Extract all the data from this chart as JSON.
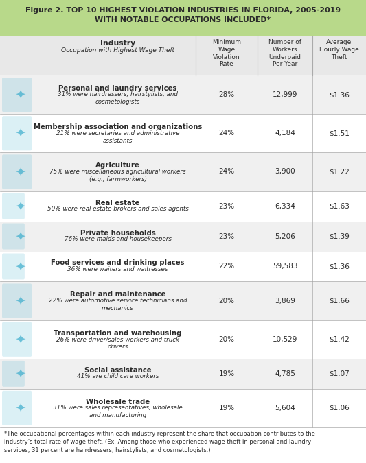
{
  "title_line1": "Figure 2. TOP 10 HIGHEST VIOLATION INDUSTRIES IN FLORIDA, 2005-2019",
  "title_line2": "WITH NOTABLE OCCUPATIONS INCLUDED*",
  "title_bg": "#b8d98a",
  "header_bg": "#e8e8e8",
  "row_bg_odd": "#f0f0f0",
  "row_bg_even": "#ffffff",
  "industries": [
    {
      "name": "Personal and laundry services",
      "sub": "31% were hairdressers, hairstylists, and\ncosmetologists",
      "rate": "28%",
      "workers": "12,999",
      "wage": "$1.36",
      "sub_lines": 2
    },
    {
      "name": "Membership association and organizations",
      "sub": "21% were secretaries and administrative\nassistants",
      "rate": "24%",
      "workers": "4,184",
      "wage": "$1.51",
      "sub_lines": 2
    },
    {
      "name": "Agriculture",
      "sub": "75% were miscellaneous agricultural workers\n(e.g., farmworkers)",
      "rate": "24%",
      "workers": "3,900",
      "wage": "$1.22",
      "sub_lines": 2
    },
    {
      "name": "Real estate",
      "sub": "50% were real estate brokers and sales agents",
      "rate": "23%",
      "workers": "6,334",
      "wage": "$1.63",
      "sub_lines": 1
    },
    {
      "name": "Private households",
      "sub": "76% were maids and housekeepers",
      "rate": "23%",
      "workers": "5,206",
      "wage": "$1.39",
      "sub_lines": 1
    },
    {
      "name": "Food services and drinking places",
      "sub": "36% were waiters and waitresses",
      "rate": "22%",
      "workers": "59,583",
      "wage": "$1.36",
      "sub_lines": 1
    },
    {
      "name": "Repair and maintenance",
      "sub": "22% were automotive service technicians and\nmechanics",
      "rate": "20%",
      "workers": "3,869",
      "wage": "$1.66",
      "sub_lines": 2
    },
    {
      "name": "Transportation and warehousing",
      "sub": "26% were driver/sales workers and truck\ndrivers",
      "rate": "20%",
      "workers": "10,529",
      "wage": "$1.42",
      "sub_lines": 2
    },
    {
      "name": "Social assistance",
      "sub": "41% are child care workers",
      "rate": "19%",
      "workers": "4,785",
      "wage": "$1.07",
      "sub_lines": 1
    },
    {
      "name": "Wholesale trade",
      "sub": "31% were sales representatives, wholesale\nand manufacturing",
      "rate": "19%",
      "workers": "5,604",
      "wage": "$1.06",
      "sub_lines": 2
    }
  ],
  "footnote": "*The occupational percentages within each industry represent the share that occupation contributes to the industry’s total rate of wage theft. (Ex. Among those who experienced wage theft in personal and laundry services, 31 percent are hairdressers, hairstylists, and cosmetologists.)",
  "text_dark": "#2b2b2b",
  "divider_color": "#aaaaaa",
  "icon_color": "#3aaccc",
  "fig_width": 5.33,
  "fig_height": 6.75,
  "dpi": 100
}
